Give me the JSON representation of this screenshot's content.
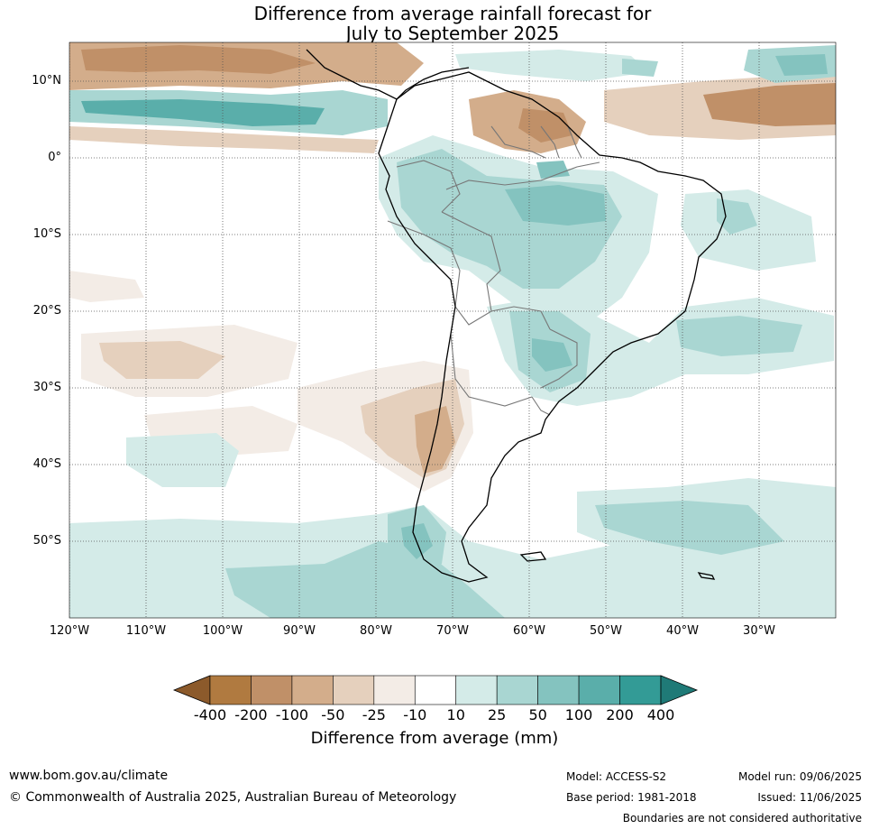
{
  "title": {
    "line1": "Difference from average rainfall forecast for",
    "line2": "July to September 2025"
  },
  "map": {
    "lat_labels": [
      "10°N",
      "0°",
      "10°S",
      "20°S",
      "30°S",
      "40°S",
      "50°S"
    ],
    "lon_labels": [
      "120°W",
      "110°W",
      "100°W",
      "90°W",
      "80°W",
      "70°W",
      "60°W",
      "50°W",
      "40°W",
      "30°W"
    ],
    "extent": {
      "lon": [
        -120,
        -20
      ],
      "lat": [
        -60,
        15
      ]
    }
  },
  "legend": {
    "ticks": [
      "-400",
      "-200",
      "-100",
      "-50",
      "-25",
      "-10",
      "10",
      "25",
      "50",
      "100",
      "200",
      "400"
    ],
    "colors": [
      "#8c5a2b",
      "#b07a40",
      "#c09068",
      "#d3ad8b",
      "#e5d0bd",
      "#f3ece6",
      "#ffffff",
      "#d4ebe8",
      "#a9d6d2",
      "#84c3bf",
      "#5aaeaa",
      "#339b96",
      "#1f7a77"
    ],
    "title": "Difference from average (mm)"
  },
  "footer": {
    "website": "www.bom.gov.au/climate",
    "copyright": "© Commonwealth of Australia 2025, Australian Bureau of Meteorology",
    "model": "Model: ACCESS-S2",
    "base_period": "Base period: 1981-2018",
    "model_run": "Model run: 09/06/2025",
    "issued": "Issued: 11/06/2025",
    "disclaimer": "Boundaries are not considered authoritative"
  }
}
